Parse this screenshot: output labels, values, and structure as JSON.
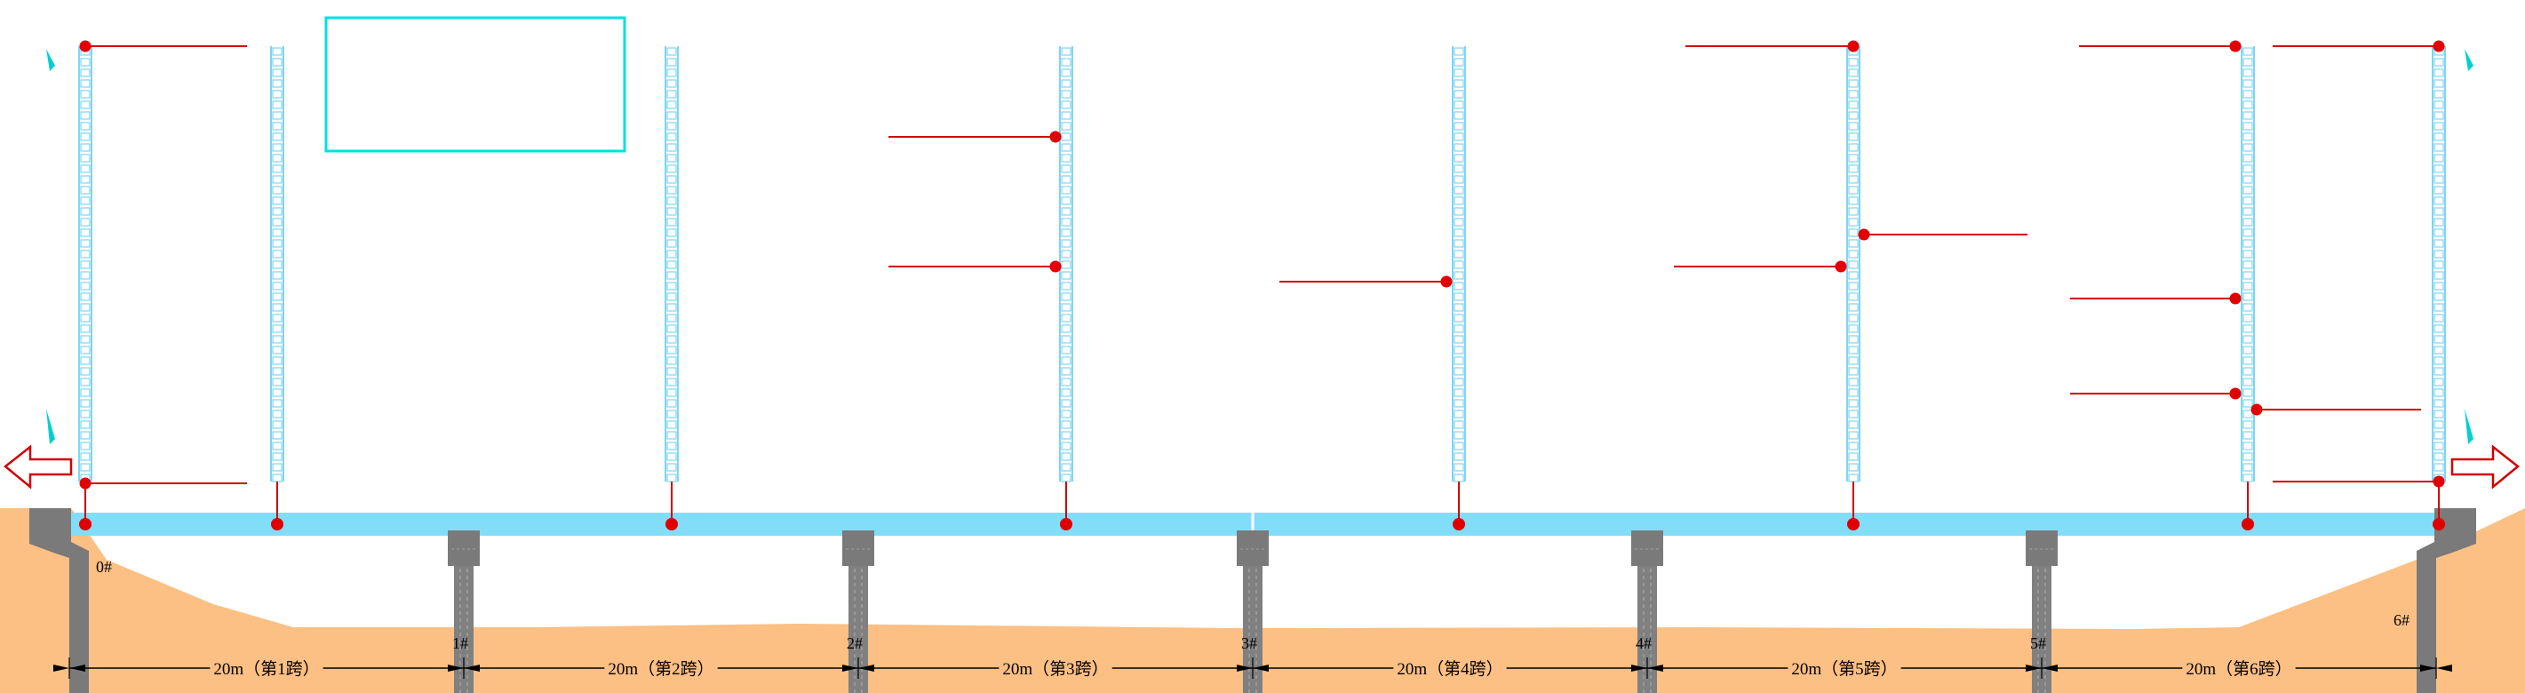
{
  "colors": {
    "ground": "#FCBF84",
    "deck": "#82DEF8",
    "ladder": "#7FD5F5",
    "pier": "#808080",
    "pier_cap": "#7A7A7A",
    "marker_line": "#D00000",
    "marker_dot": "#E00000",
    "box": "#00E0E0",
    "arrow": "#D00000",
    "scaffold_tick": "#00D0D0"
  },
  "abutments": [
    {
      "label": "0#"
    },
    {
      "label": "6#"
    }
  ],
  "piers": [
    {
      "label": "1#"
    },
    {
      "label": "2#"
    },
    {
      "label": "3#"
    },
    {
      "label": "4#"
    },
    {
      "label": "5#"
    }
  ],
  "spans": [
    {
      "label": "20m（第1跨）"
    },
    {
      "label": "20m（第2跨）"
    },
    {
      "label": "20m（第3跨）"
    },
    {
      "label": "20m（第4跨）"
    },
    {
      "label": "20m（第5跨）"
    },
    {
      "label": "20m（第6跨）"
    }
  ],
  "icons": {
    "left_arrow": "hollow-left-arrow-icon",
    "right_arrow": "hollow-right-arrow-icon"
  }
}
